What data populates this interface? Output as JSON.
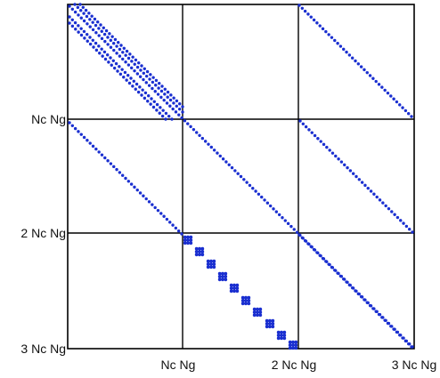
{
  "axis_labels": {
    "y": [
      "Nc Ng",
      "2 Nc Ng",
      "3 Nc Ng"
    ],
    "x": [
      "Nc Ng",
      "2 Nc Ng",
      "3 Nc Ng"
    ]
  },
  "colors": {
    "dots": "#1a2fd0",
    "grid": "#000000",
    "background": "#ffffff"
  },
  "sparsity_pattern": {
    "description_of_structure": "3x3 block matrix; main diagonal and off-diagonal bands plus dense small blocks along the (3,2) block diagonal",
    "block_grid": 3
  }
}
